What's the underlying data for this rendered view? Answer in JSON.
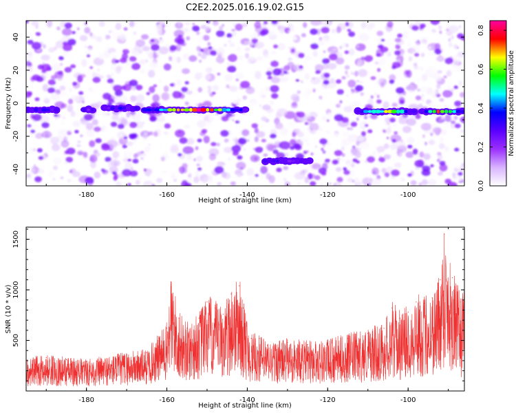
{
  "title": "C2E2.2025.016.19.02.G15",
  "chart_data": [
    {
      "type": "heatmap",
      "xlabel": "Height of straight line (km)",
      "ylabel": "Frequency (Hz)",
      "xlim": [
        -195,
        -86
      ],
      "ylim": [
        -50,
        50
      ],
      "x_ticks": [
        -180,
        -160,
        -140,
        -120,
        -100
      ],
      "y_ticks": [
        -40,
        -20,
        0,
        20,
        40
      ],
      "colorbar": {
        "label": "Normalized spectral amplitude",
        "range": [
          0.0,
          0.85
        ],
        "ticks": [
          0.0,
          0.2,
          0.4,
          0.6,
          0.8
        ],
        "colors": [
          "#ffffff",
          "#d8b4ff",
          "#9b30ff",
          "#5a00ff",
          "#0000ff",
          "#00ffff",
          "#00ff00",
          "#ffff00",
          "#ff0000",
          "#ff00a0"
        ]
      },
      "features": [
        {
          "x_range": [
            -195,
            -187
          ],
          "y": -4,
          "peak": 0.35
        },
        {
          "x_range": [
            -181,
            -178
          ],
          "y": -4,
          "peak": 0.25
        },
        {
          "x_range": [
            -176,
            -167
          ],
          "y": -3,
          "peak": 0.35
        },
        {
          "x_range": [
            -166,
            -140
          ],
          "y": -4,
          "peak": 0.85
        },
        {
          "x_range": [
            -113,
            -98
          ],
          "y": -5,
          "peak": 0.65
        },
        {
          "x_range": [
            -97,
            -86
          ],
          "y": -5,
          "peak": 0.75
        },
        {
          "x_range": [
            -136,
            -124
          ],
          "y": -35,
          "peak": 0.3
        }
      ],
      "grid": false
    },
    {
      "type": "line",
      "xlabel": "Height of straight line (km)",
      "ylabel": "SNR (10 * v/v)",
      "xlim": [
        -195,
        -86
      ],
      "ylim": [
        0,
        1620
      ],
      "x_ticks": [
        -180,
        -160,
        -140,
        -120,
        -100
      ],
      "y_ticks": [
        500,
        1000,
        1500
      ],
      "series": [
        {
          "color": "#ee3030",
          "x": [
            -195,
            -190,
            -185,
            -180,
            -175,
            -170,
            -165,
            -162,
            -160,
            -159,
            -157,
            -155,
            -152,
            -150,
            -148,
            -146,
            -144,
            -142,
            -141,
            -139,
            -137,
            -135,
            -130,
            -125,
            -120,
            -115,
            -110,
            -106,
            -104,
            -102,
            -100,
            -98,
            -96,
            -94,
            -92,
            -91,
            -89,
            -87,
            -86
          ],
          "values": [
            300,
            330,
            310,
            290,
            320,
            360,
            380,
            520,
            620,
            1080,
            720,
            620,
            720,
            880,
            820,
            760,
            960,
            1040,
            820,
            520,
            520,
            450,
            480,
            460,
            470,
            520,
            570,
            620,
            820,
            720,
            780,
            880,
            870,
            920,
            1100,
            1550,
            1120,
            880,
            920
          ]
        }
      ],
      "grid": false
    }
  ]
}
